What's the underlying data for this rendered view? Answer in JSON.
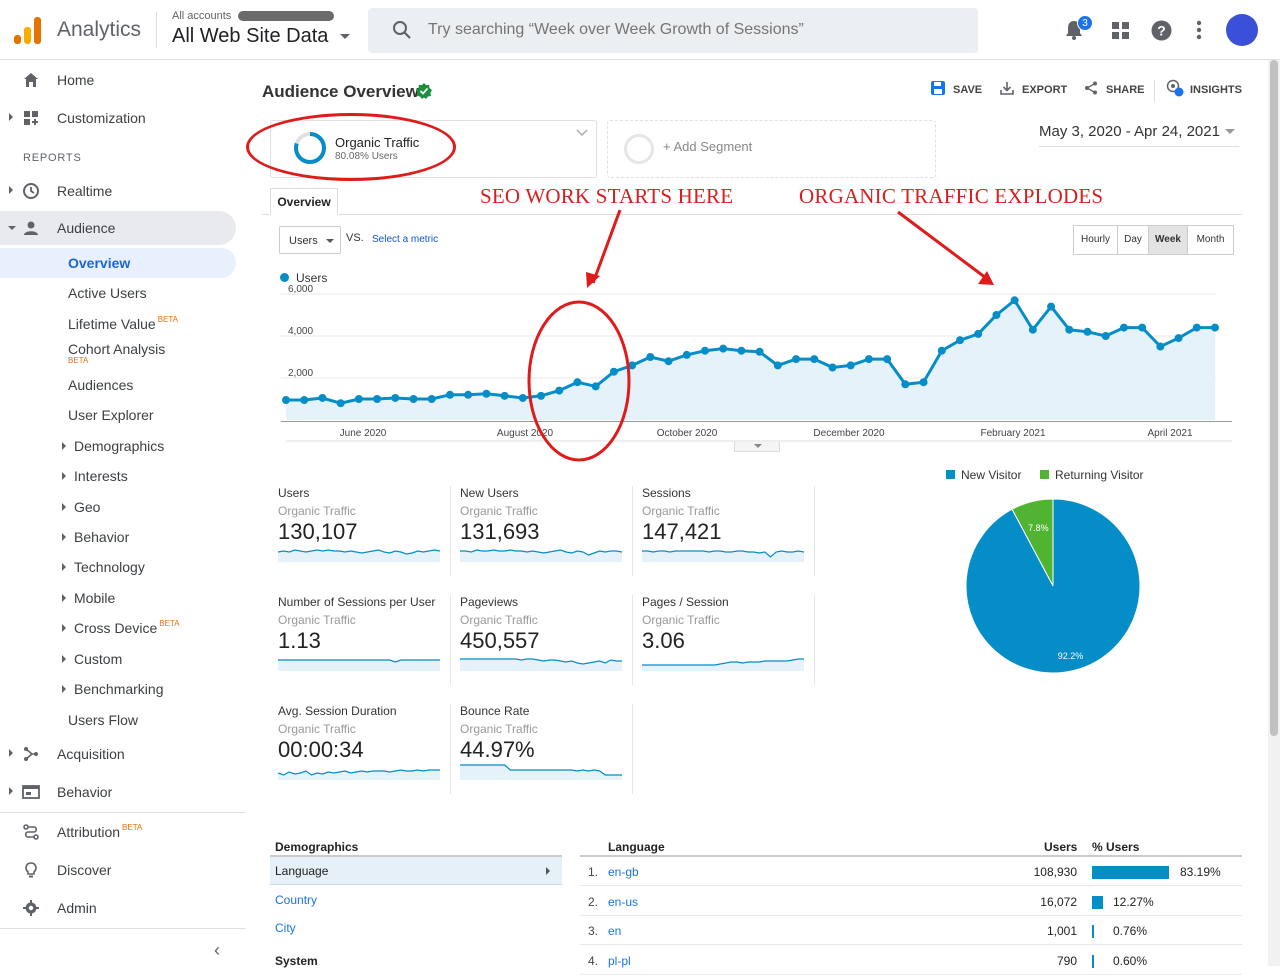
{
  "header": {
    "app_name": "Analytics",
    "account_label": "All accounts",
    "account_name": "All Web Site Data",
    "search_placeholder": "Try searching “Week over Week Growth of Sessions”",
    "notification_count": "3"
  },
  "sidebar": {
    "home": "Home",
    "customization": "Customization",
    "reports_label": "REPORTS",
    "realtime": "Realtime",
    "audience": "Audience",
    "audience_items": [
      {
        "label": "Overview"
      },
      {
        "label": "Active Users"
      },
      {
        "label": "Lifetime Value",
        "badge": "BETA"
      },
      {
        "label": "Cohort Analysis",
        "badge": "BETA"
      },
      {
        "label": "Audiences"
      },
      {
        "label": "User Explorer"
      },
      {
        "label": "Demographics"
      },
      {
        "label": "Interests"
      },
      {
        "label": "Geo"
      },
      {
        "label": "Behavior"
      },
      {
        "label": "Technology"
      },
      {
        "label": "Mobile"
      },
      {
        "label": "Cross Device",
        "badge": "BETA"
      },
      {
        "label": "Custom"
      },
      {
        "label": "Benchmarking"
      },
      {
        "label": "Users Flow"
      }
    ],
    "acquisition": "Acquisition",
    "behavior": "Behavior",
    "attribution": "Attribution",
    "attribution_badge": "BETA",
    "discover": "Discover",
    "admin": "Admin"
  },
  "page": {
    "title": "Audience Overview",
    "actions": {
      "save": "SAVE",
      "export": "EXPORT",
      "share": "SHARE",
      "insights": "INSIGHTS"
    },
    "segment": {
      "name": "Organic Traffic",
      "sub": "80.08% Users"
    },
    "add_segment": "+ Add Segment",
    "date_range": "May 3, 2020 - Apr 24, 2021",
    "annotation_left": "SEO WORK STARTS HERE",
    "annotation_right": "ORGANIC TRAFFIC EXPLODES",
    "tab": "Overview",
    "metric": "Users",
    "vs": "VS.",
    "select_metric": "Select a metric",
    "granularity": [
      "Hourly",
      "Day",
      "Week",
      "Month"
    ],
    "granularity_active": "Week",
    "legend": "Users"
  },
  "chart_data": {
    "type": "line",
    "series": [
      {
        "name": "Users",
        "values": [
          950,
          950,
          1050,
          800,
          1000,
          1000,
          1050,
          1000,
          1000,
          1200,
          1200,
          1250,
          1150,
          1050,
          1150,
          1400,
          1800,
          1600,
          2300,
          2600,
          3000,
          2800,
          3100,
          3300,
          3400,
          3300,
          3250,
          2600,
          2900,
          2900,
          2500,
          2600,
          2900,
          2900,
          1700,
          1800,
          3300,
          3800,
          4100,
          5000,
          5700,
          4300,
          5400,
          4300,
          4200,
          4000,
          4400,
          4400,
          3500,
          3900,
          4400,
          4400
        ]
      }
    ],
    "x_ticks": [
      "June 2020",
      "August 2020",
      "October 2020",
      "December 2020",
      "February 2021",
      "April 2021"
    ],
    "y_ticks": [
      "2,000",
      "4,000",
      "6,000"
    ],
    "ylim": [
      0,
      6000
    ],
    "color": "#058dc7",
    "grid": true
  },
  "metrics": [
    {
      "name": "Users",
      "segment": "Organic Traffic",
      "value": "130,107"
    },
    {
      "name": "New Users",
      "segment": "Organic Traffic",
      "value": "131,693"
    },
    {
      "name": "Sessions",
      "segment": "Organic Traffic",
      "value": "147,421"
    },
    {
      "name": "Number of Sessions per User",
      "segment": "Organic Traffic",
      "value": "1.13"
    },
    {
      "name": "Pageviews",
      "segment": "Organic Traffic",
      "value": "450,557"
    },
    {
      "name": "Pages / Session",
      "segment": "Organic Traffic",
      "value": "3.06"
    },
    {
      "name": "Avg. Session Duration",
      "segment": "Organic Traffic",
      "value": "00:00:34"
    },
    {
      "name": "Bounce Rate",
      "segment": "Organic Traffic",
      "value": "44.97%"
    }
  ],
  "pie": {
    "legend": [
      "New Visitor",
      "Returning Visitor"
    ],
    "colors": [
      "#058dc7",
      "#50b432"
    ],
    "values": [
      92.2,
      7.8
    ],
    "labels": [
      "92.2%",
      "7.8%"
    ]
  },
  "demographics": {
    "title": "Demographics",
    "items": [
      "Language",
      "Country",
      "City"
    ],
    "system_label": "System"
  },
  "language_table": {
    "headers": {
      "language": "Language",
      "users": "Users",
      "pct": "% Users"
    },
    "rows": [
      {
        "idx": "1.",
        "lang": "en-gb",
        "users": "108,930",
        "pct": "83.19%",
        "share": 83.19
      },
      {
        "idx": "2.",
        "lang": "en-us",
        "users": "16,072",
        "pct": "12.27%",
        "share": 12.27
      },
      {
        "idx": "3.",
        "lang": "en",
        "users": "1,001",
        "pct": "0.76%",
        "share": 0.76
      },
      {
        "idx": "4.",
        "lang": "pl-pl",
        "users": "790",
        "pct": "0.60%",
        "share": 0.6
      }
    ]
  }
}
